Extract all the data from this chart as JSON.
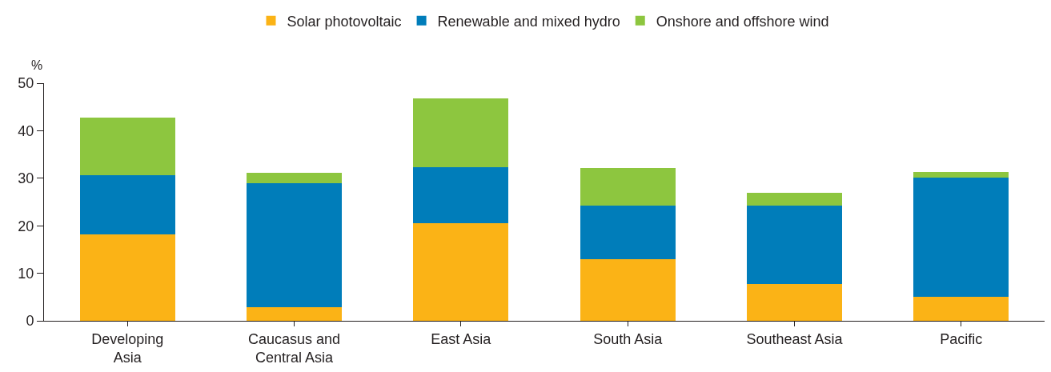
{
  "chart_data": {
    "type": "bar",
    "stacked": true,
    "ylabel": "%",
    "categories": [
      "Developing Asia",
      "Caucasus and Central Asia",
      "East Asia",
      "South Asia",
      "Southeast Asia",
      "Pacific"
    ],
    "series": [
      {
        "name": "Solar photovoltaic",
        "color": "#fbb316",
        "values": [
          18.1,
          2.9,
          20.5,
          13.0,
          7.7,
          5.0
        ]
      },
      {
        "name": "Renewable and mixed hydro",
        "color": "#007dba",
        "values": [
          12.6,
          26.0,
          11.8,
          11.2,
          16.6,
          25.2
        ]
      },
      {
        "name": "Onshore and offshore wind",
        "color": "#8dc63f",
        "values": [
          12.0,
          2.2,
          14.5,
          8.0,
          2.6,
          1.1
        ]
      }
    ],
    "ylim": [
      0,
      50
    ],
    "yticks": [
      0,
      10,
      20,
      30,
      40,
      50
    ],
    "grid": false,
    "legend": "top"
  }
}
